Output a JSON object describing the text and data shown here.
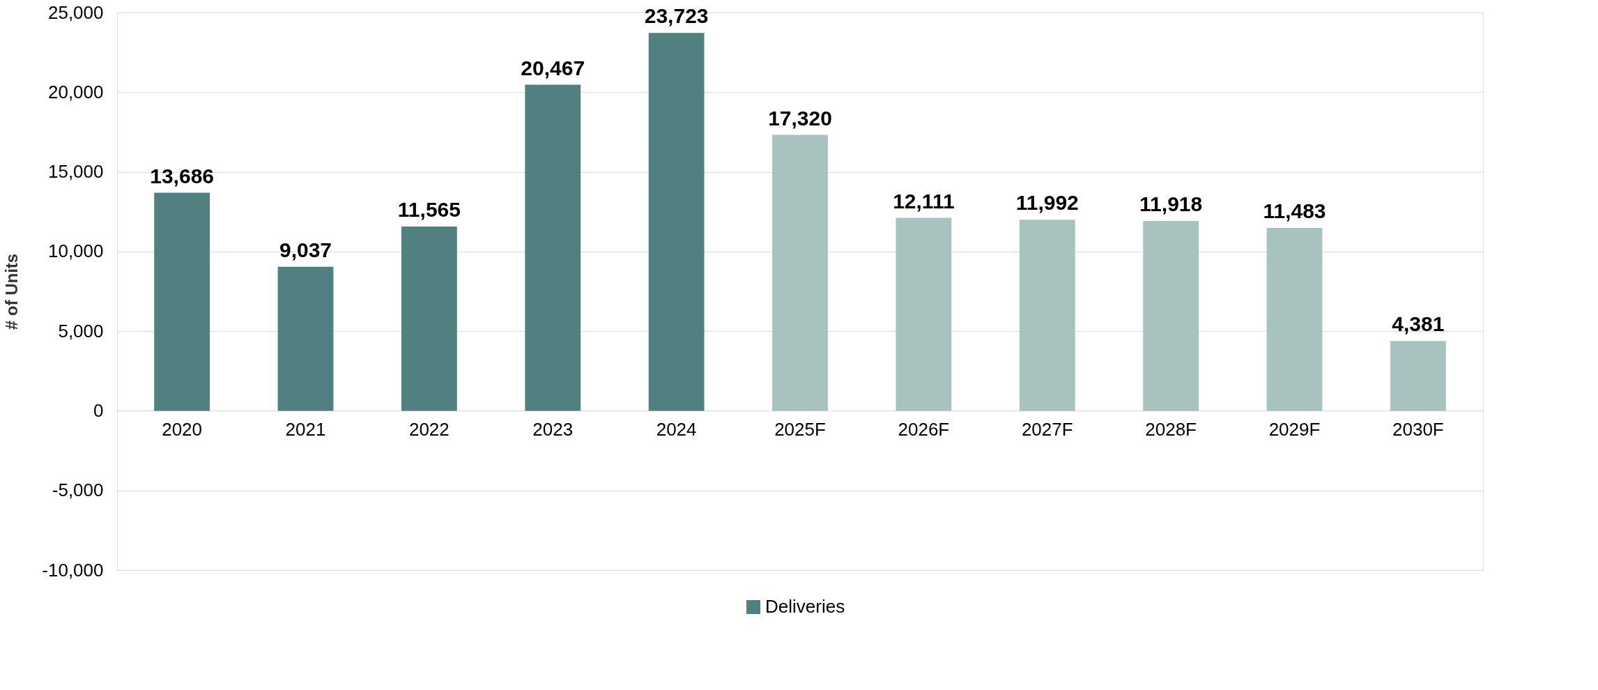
{
  "chart_data": {
    "type": "bar",
    "ylabel": "# of Units",
    "categories": [
      "2020",
      "2021",
      "2022",
      "2023",
      "2024",
      "2025F",
      "2026F",
      "2027F",
      "2028F",
      "2029F",
      "2030F"
    ],
    "series": [
      {
        "name": "Deliveries",
        "color": "#518080",
        "colors": [
          "#518080",
          "#518080",
          "#518080",
          "#518080",
          "#518080",
          "#a8c2c0",
          "#a8c2c0",
          "#a8c2c0",
          "#a8c2c0",
          "#a8c2c0",
          "#a8c2c0"
        ],
        "values": [
          13686,
          9037,
          11565,
          20467,
          23723,
          17320,
          12111,
          11992,
          11918,
          11483,
          4381
        ],
        "value_labels": [
          "13,686",
          "9,037",
          "11,565",
          "20,467",
          "23,723",
          "17,320",
          "12,111",
          "11,992",
          "11,918",
          "11,483",
          "4,381"
        ]
      }
    ],
    "ylim": [
      -10000,
      25000
    ],
    "yticks": [
      {
        "value": -10000,
        "label": "-10,000"
      },
      {
        "value": -5000,
        "label": "-5,000"
      },
      0,
      {
        "value": 5000,
        "label": "5,000"
      },
      {
        "value": 10000,
        "label": "10,000"
      },
      {
        "value": 15000,
        "label": "15,000"
      },
      {
        "value": 20000,
        "label": "20,000"
      },
      {
        "value": 25000,
        "label": "25,000"
      }
    ],
    "grid": "y",
    "legend": "bottom"
  }
}
